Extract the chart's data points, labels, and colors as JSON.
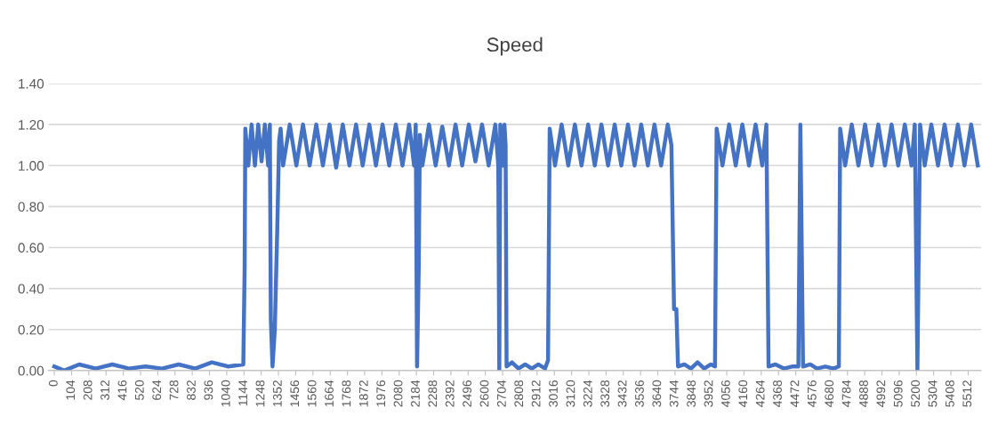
{
  "chart_data": {
    "type": "line",
    "title": "Speed",
    "grid": "y",
    "legend": false,
    "marker": "none",
    "line_style": "solid",
    "ylim": [
      0,
      1.4
    ],
    "yticks": [
      {
        "value": 0,
        "label": "0.00"
      },
      {
        "value": 0.2,
        "label": "0.20"
      },
      {
        "value": 0.4,
        "label": "0.40"
      },
      {
        "value": 0.6,
        "label": "0.60"
      },
      {
        "value": 0.8,
        "label": "0.80"
      },
      {
        "value": 1.0,
        "label": "1.00"
      },
      {
        "value": 1.2,
        "label": "1.20"
      },
      {
        "value": 1.4,
        "label": "1.40"
      }
    ],
    "xlim": [
      -35,
      5590
    ],
    "xticks": [
      0,
      104,
      208,
      312,
      416,
      520,
      624,
      728,
      832,
      936,
      1040,
      1144,
      1248,
      1352,
      1456,
      1560,
      1664,
      1768,
      1872,
      1976,
      2080,
      2184,
      2288,
      2392,
      2496,
      2600,
      2704,
      2808,
      2912,
      3016,
      3120,
      3224,
      3328,
      3432,
      3536,
      3640,
      3744,
      3848,
      3952,
      4056,
      4160,
      4264,
      4368,
      4472,
      4576,
      4680,
      4784,
      4888,
      4992,
      5096,
      5200,
      5304,
      5408,
      5512
    ],
    "series": [
      {
        "color": "#4472c4",
        "x": [
          0,
          60,
          150,
          250,
          350,
          450,
          550,
          650,
          750,
          850,
          950,
          1050,
          1140,
          1148,
          1152,
          1170,
          1190,
          1210,
          1230,
          1250,
          1270,
          1290,
          1300,
          1306,
          1316,
          1330,
          1345,
          1356,
          1365,
          1380,
          1420,
          1460,
          1500,
          1540,
          1580,
          1620,
          1660,
          1700,
          1740,
          1780,
          1820,
          1860,
          1900,
          1940,
          1980,
          2020,
          2060,
          2100,
          2140,
          2170,
          2180,
          2188,
          2198,
          2205,
          2220,
          2260,
          2300,
          2340,
          2380,
          2420,
          2460,
          2500,
          2540,
          2580,
          2620,
          2660,
          2678,
          2684,
          2690,
          2705,
          2715,
          2722,
          2728,
          2760,
          2800,
          2840,
          2880,
          2920,
          2960,
          2978,
          2988,
          3020,
          3060,
          3100,
          3140,
          3180,
          3220,
          3260,
          3300,
          3340,
          3380,
          3420,
          3460,
          3500,
          3540,
          3580,
          3620,
          3660,
          3700,
          3722,
          3738,
          3752,
          3762,
          3800,
          3840,
          3880,
          3920,
          3960,
          3985,
          3995,
          4030,
          4070,
          4110,
          4150,
          4190,
          4230,
          4270,
          4295,
          4308,
          4350,
          4400,
          4450,
          4488,
          4500,
          4516,
          4560,
          4600,
          4650,
          4700,
          4732,
          4740,
          4770,
          4810,
          4850,
          4890,
          4930,
          4970,
          5010,
          5050,
          5090,
          5130,
          5170,
          5190,
          5206,
          5222,
          5250,
          5290,
          5330,
          5370,
          5410,
          5450,
          5490,
          5530,
          5570
        ],
        "values": [
          0.02,
          0.0,
          0.03,
          0.01,
          0.03,
          0.01,
          0.02,
          0.01,
          0.03,
          0.01,
          0.04,
          0.02,
          0.03,
          0.5,
          1.18,
          1.0,
          1.2,
          1.0,
          1.2,
          1.02,
          1.2,
          1.0,
          1.2,
          0.25,
          0.02,
          0.2,
          0.7,
          1.12,
          1.18,
          1.0,
          1.2,
          1.0,
          1.2,
          1.0,
          1.2,
          1.0,
          1.2,
          0.99,
          1.2,
          1.0,
          1.2,
          1.0,
          1.2,
          1.0,
          1.2,
          1.0,
          1.2,
          1.0,
          1.2,
          1.0,
          1.2,
          0.02,
          0.5,
          1.15,
          1.0,
          1.2,
          1.0,
          1.19,
          1.0,
          1.2,
          1.0,
          1.2,
          1.02,
          1.2,
          1.0,
          1.2,
          1.0,
          0.0,
          1.2,
          1.0,
          1.2,
          1.1,
          0.02,
          0.04,
          0.01,
          0.03,
          0.01,
          0.03,
          0.01,
          0.05,
          1.18,
          1.0,
          1.2,
          1.0,
          1.2,
          1.0,
          1.2,
          1.0,
          1.2,
          1.0,
          1.2,
          1.0,
          1.2,
          1.0,
          1.2,
          1.0,
          1.2,
          1.0,
          1.2,
          1.1,
          0.3,
          0.3,
          0.02,
          0.03,
          0.01,
          0.04,
          0.01,
          0.03,
          0.02,
          1.18,
          1.0,
          1.2,
          1.0,
          1.2,
          1.0,
          1.2,
          1.0,
          1.2,
          0.02,
          0.03,
          0.01,
          0.02,
          0.02,
          1.2,
          0.02,
          0.03,
          0.01,
          0.02,
          0.01,
          0.02,
          1.18,
          1.0,
          1.2,
          1.0,
          1.2,
          1.0,
          1.2,
          1.0,
          1.2,
          1.0,
          1.2,
          1.0,
          1.2,
          0.0,
          1.2,
          1.0,
          1.2,
          1.0,
          1.2,
          1.0,
          1.2,
          1.0,
          1.2,
          1.0
        ]
      }
    ]
  }
}
